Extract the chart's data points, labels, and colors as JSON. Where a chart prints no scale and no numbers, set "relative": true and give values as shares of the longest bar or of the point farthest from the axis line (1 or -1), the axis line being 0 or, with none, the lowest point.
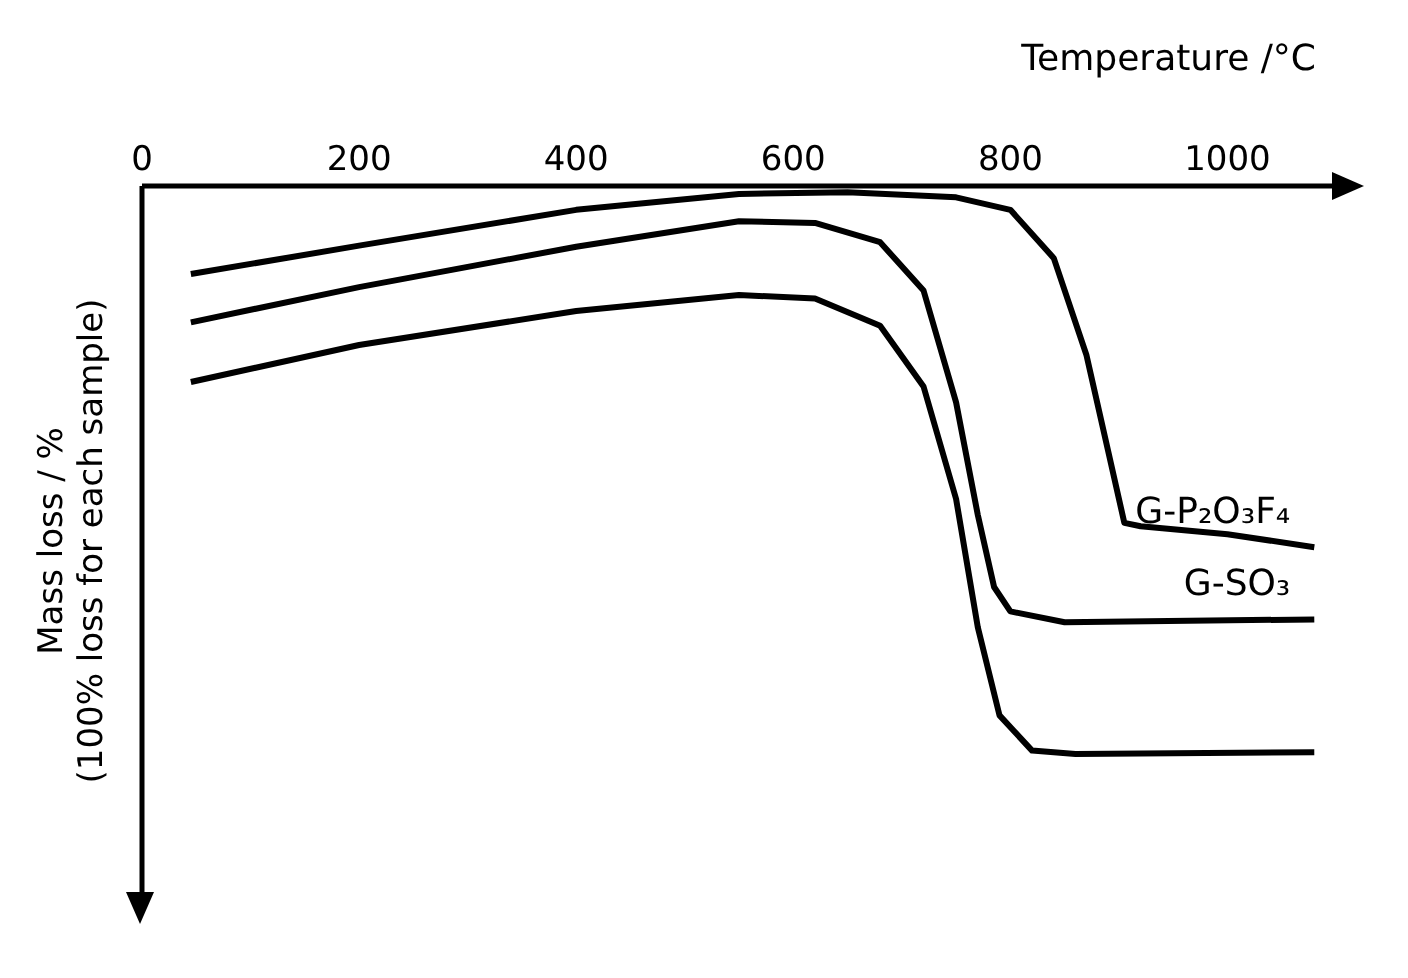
{
  "chart_data": {
    "type": "line",
    "relative": true,
    "xlabel": "Temperature /°C",
    "ylabel": "Mass loss / %\n(100% loss for each sample)",
    "xlim": [
      0,
      1100
    ],
    "xticks": [
      0,
      200,
      400,
      600,
      800,
      1000
    ],
    "grid": false,
    "legend": false,
    "marker": "none",
    "line_style": "solid",
    "series": [
      {
        "name": "G-P₂O₃F₄",
        "color": "#000000",
        "x": [
          45,
          200,
          400,
          550,
          650,
          750,
          800,
          840,
          870,
          890,
          905,
          920,
          1000,
          1080
        ],
        "values": [
          -0.155,
          -0.105,
          -0.042,
          -0.014,
          -0.011,
          -0.02,
          -0.042,
          -0.127,
          -0.297,
          -0.466,
          -0.593,
          -0.599,
          -0.613,
          -0.636
        ]
      },
      {
        "name": "G-SO₃",
        "color": "#000000",
        "x": [
          45,
          200,
          400,
          550,
          620,
          680,
          720,
          750,
          770,
          785,
          800,
          850,
          1080
        ],
        "values": [
          -0.24,
          -0.178,
          -0.107,
          -0.062,
          -0.065,
          -0.099,
          -0.184,
          -0.381,
          -0.579,
          -0.706,
          -0.749,
          -0.768,
          -0.763
        ]
      },
      {
        "color": "#000000",
        "x": [
          45,
          200,
          400,
          550,
          620,
          680,
          720,
          750,
          770,
          790,
          820,
          860,
          1080
        ],
        "values": [
          -0.345,
          -0.28,
          -0.22,
          -0.192,
          -0.198,
          -0.246,
          -0.353,
          -0.551,
          -0.777,
          -0.932,
          -0.994,
          -1.0,
          -0.997
        ]
      }
    ]
  }
}
